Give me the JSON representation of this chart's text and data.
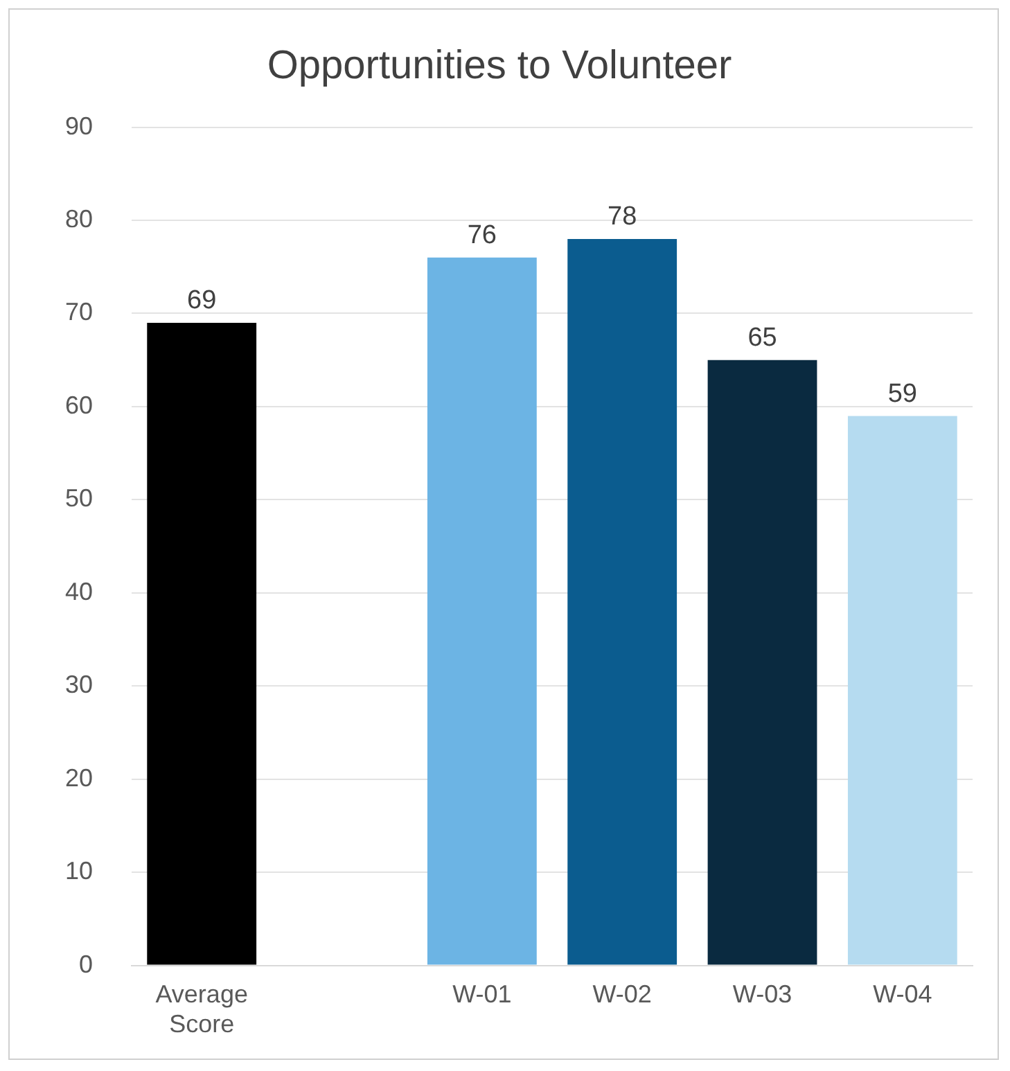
{
  "chart_data": {
    "type": "bar",
    "title": "Opportunities to Volunteer",
    "categories": [
      "Average Score",
      null,
      "W-01",
      "W-02",
      "W-03",
      "W-04"
    ],
    "values": [
      69,
      null,
      76,
      78,
      65,
      59
    ],
    "colors": [
      "#000000",
      null,
      "#6cb4e4",
      "#0b5c8f",
      "#0a2a40",
      "#b5dbf0"
    ],
    "ylim": [
      0,
      90
    ],
    "yticks": [
      0,
      10,
      20,
      30,
      40,
      50,
      60,
      70,
      80,
      90
    ],
    "grid": "y",
    "data_labels": true
  }
}
